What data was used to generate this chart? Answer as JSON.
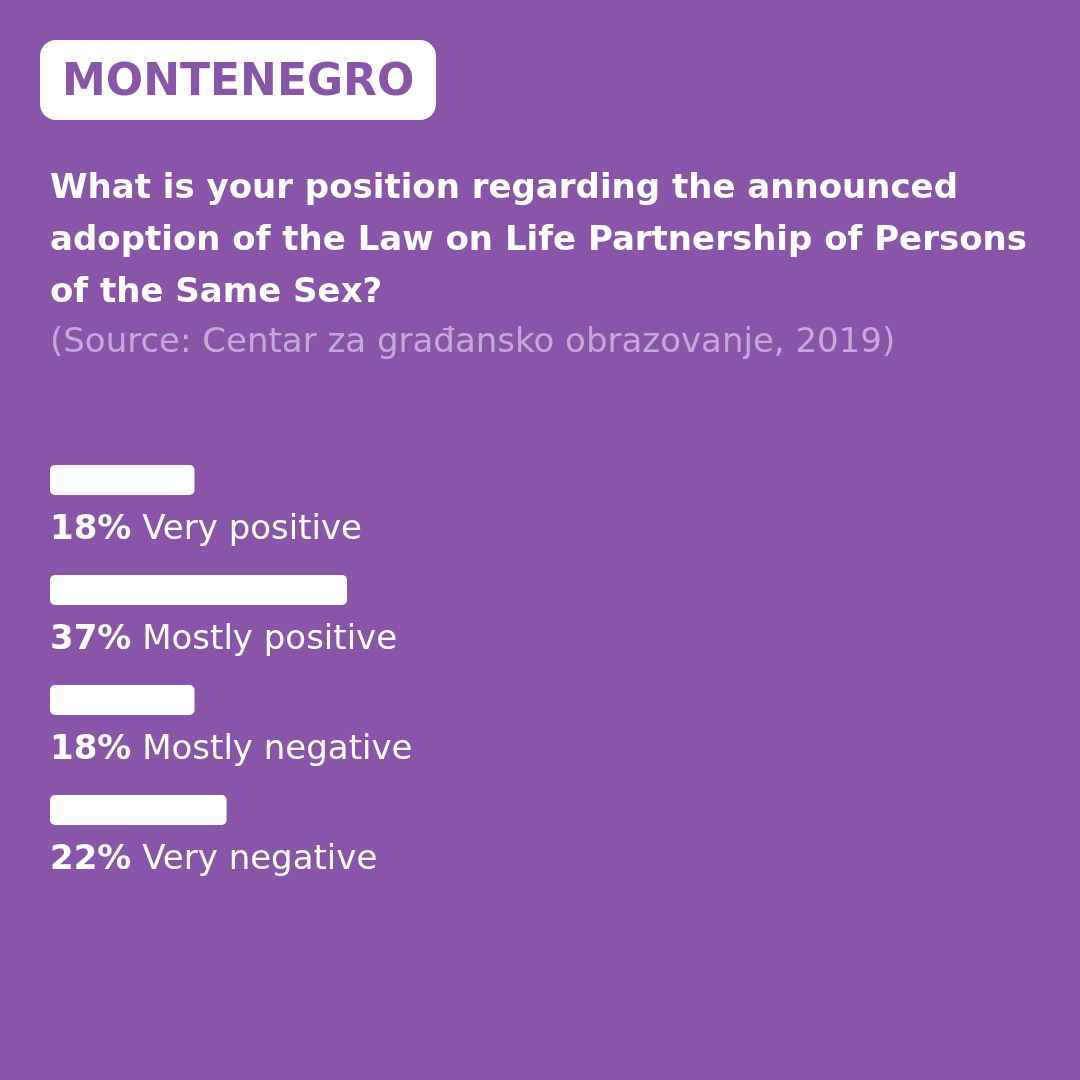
{
  "chart_data": {
    "type": "bar",
    "orientation": "horizontal",
    "subtitle": "MONTENEGRO",
    "title": "What is your position regarding the announced adoption of the Law on Life Partnership of Persons of the Same Sex?",
    "annotations": [
      "(Source: Centar za građansko obrazovanje, 2019)"
    ],
    "categories": [
      "Very positive",
      "Mostly positive",
      "Mostly negative",
      "Very negative"
    ],
    "values": [
      18,
      37,
      18,
      22
    ],
    "value_labels": [
      "18%",
      "37%",
      "18%",
      "22%"
    ],
    "color": "#ffffff"
  }
}
